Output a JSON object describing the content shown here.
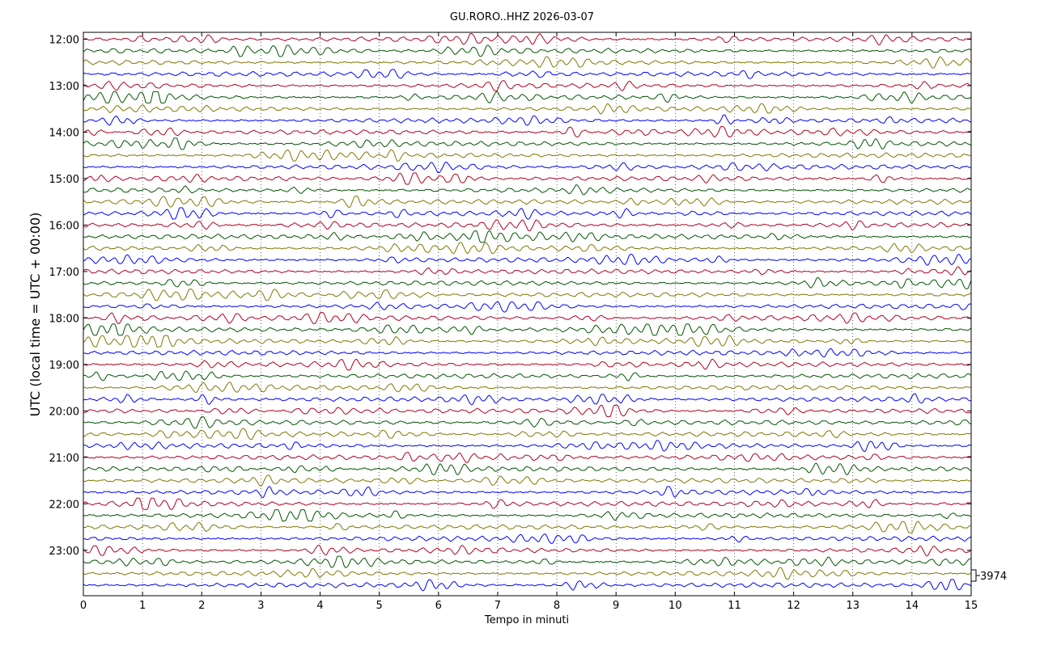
{
  "chart_data": {
    "type": "line",
    "title": "GU.RORO..HHZ 2026-03-07",
    "xlabel": "Tempo in minuti",
    "ylabel": "UTC (local time = UTC + 00:00)",
    "xlim": [
      0,
      15
    ],
    "x_ticks": [
      "0",
      "1",
      "2",
      "3",
      "4",
      "5",
      "6",
      "7",
      "8",
      "9",
      "10",
      "11",
      "12",
      "13",
      "14",
      "15"
    ],
    "y_ticks": [
      "12:00",
      "13:00",
      "14:00",
      "15:00",
      "16:00",
      "17:00",
      "18:00",
      "19:00",
      "20:00",
      "21:00",
      "22:00",
      "23:00"
    ],
    "scale_label": "3974",
    "traces_per_hour": 4,
    "trace_count": 48,
    "colors": [
      "#b2001f",
      "#005500",
      "#7f7700",
      "#0000ff"
    ],
    "grid": true
  }
}
